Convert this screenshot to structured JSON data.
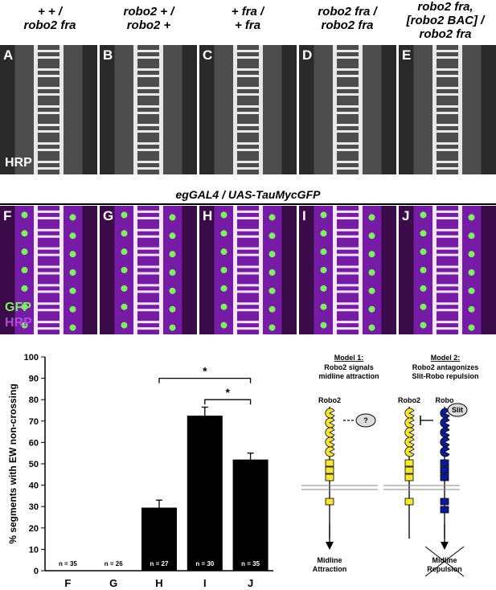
{
  "headers": [
    {
      "line1": "+ + /",
      "line2": "robo2 fra"
    },
    {
      "line1": "robo2 + /",
      "line2": "robo2 +"
    },
    {
      "line1": "+ fra /",
      "line2": "+ fra"
    },
    {
      "line1": "robo2 fra /",
      "line2": "robo2 fra"
    },
    {
      "line1": "robo2 fra,",
      "line2": "[robo2 BAC] /",
      "line3": "robo2 fra"
    }
  ],
  "row1": {
    "labels": [
      "A",
      "B",
      "C",
      "D",
      "E"
    ],
    "stain": "HRP"
  },
  "row2": {
    "title": "egGAL4 / UAS-TauMycGFP",
    "labels": [
      "F",
      "G",
      "H",
      "I",
      "J"
    ],
    "stain1": "GFP",
    "stain2": "HRP"
  },
  "chart_data": {
    "type": "bar",
    "categories": [
      "F",
      "G",
      "H",
      "I",
      "J"
    ],
    "values": [
      0,
      0,
      29.5,
      72.5,
      52
    ],
    "errors": [
      0,
      0,
      3.5,
      4,
      3
    ],
    "n_labels": [
      "n = 35",
      "n = 26",
      "n = 27",
      "n = 30",
      "n = 35"
    ],
    "ylabel": "% segments with EW non-crossing",
    "ylim": [
      0,
      100
    ],
    "yticks": [
      "0",
      "10",
      "20",
      "30",
      "40",
      "50",
      "60",
      "70",
      "80",
      "90",
      "100"
    ],
    "significance": [
      {
        "from": "H",
        "to": "J",
        "mark": "*"
      },
      {
        "from": "I",
        "to": "J",
        "mark": "*"
      }
    ]
  },
  "models": {
    "m1_title": "Model 1:",
    "m1_l1": "Robo2 signals",
    "m1_l2": "midline attraction",
    "m1_receptor": "Robo2",
    "m1_unknown": "?",
    "m1_out1": "Midline",
    "m1_out2": "Attraction",
    "m2_title": "Model 2:",
    "m2_l1": "Robo2 antagonizes",
    "m2_l2": "Slit-Robo repulsion",
    "m2_receptor1": "Robo2",
    "m2_receptor2": "Robo",
    "m2_ligand": "Slit",
    "m2_out1": "Midline",
    "m2_out2": "Repulsion"
  },
  "colors": {
    "robo2": "#f5e632",
    "robo": "#0c1a9a",
    "gfp": "#7df25a",
    "hrp": "#9b2bd6"
  }
}
